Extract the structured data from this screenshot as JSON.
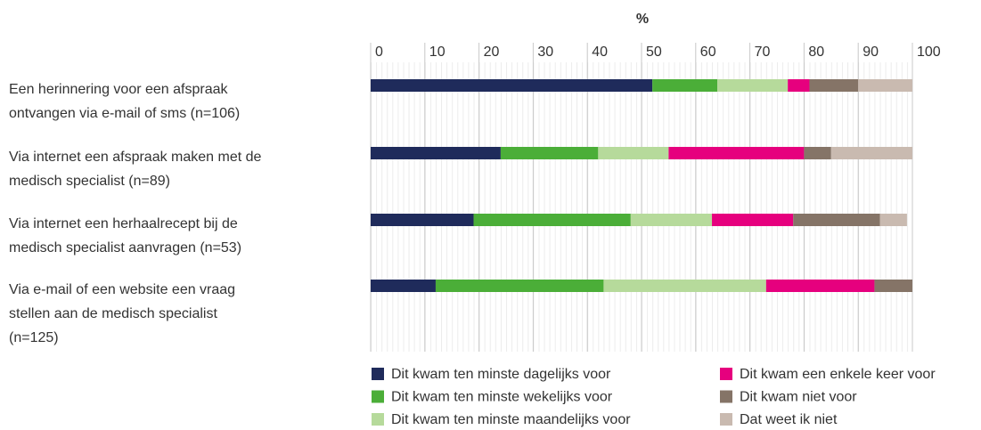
{
  "chart_data": {
    "type": "stacked_barh",
    "xlabel": "%",
    "categories": [
      "Een herinnering voor een afspraak\nontvangen via e-mail of sms (n=106)",
      "Via internet een afspraak maken met de\nmedisch specialist (n=89)",
      "Via internet een herhaalrecept bij de\nmedisch specialist aanvragen (n=53)",
      "Via e-mail of een website een vraag\nstellen aan de medisch specialist\n(n=125)"
    ],
    "series": [
      {
        "name": "Dit kwam ten minste dagelijks voor",
        "color": "#1f2b5b",
        "values": [
          52,
          24,
          19,
          12
        ]
      },
      {
        "name": "Dit kwam ten minste wekelijks voor",
        "color": "#4bae38",
        "values": [
          12,
          18,
          29,
          31
        ]
      },
      {
        "name": "Dit kwam ten minste maandelijks voor",
        "color": "#b6da9b",
        "values": [
          13,
          13,
          15,
          30
        ]
      },
      {
        "name": "Dit kwam een enkele keer voor",
        "color": "#e6007e",
        "values": [
          4,
          25,
          15,
          20
        ]
      },
      {
        "name": "Dit kwam niet voor",
        "color": "#857467",
        "values": [
          9,
          5,
          16,
          7
        ]
      },
      {
        "name": "Dat weet ik niet",
        "color": "#c9bab0",
        "values": [
          10,
          15,
          5,
          0
        ]
      }
    ],
    "xlim": [
      0,
      100
    ],
    "xticks": [
      0,
      10,
      20,
      30,
      40,
      50,
      60,
      70,
      80,
      90,
      100
    ],
    "grid": true
  }
}
